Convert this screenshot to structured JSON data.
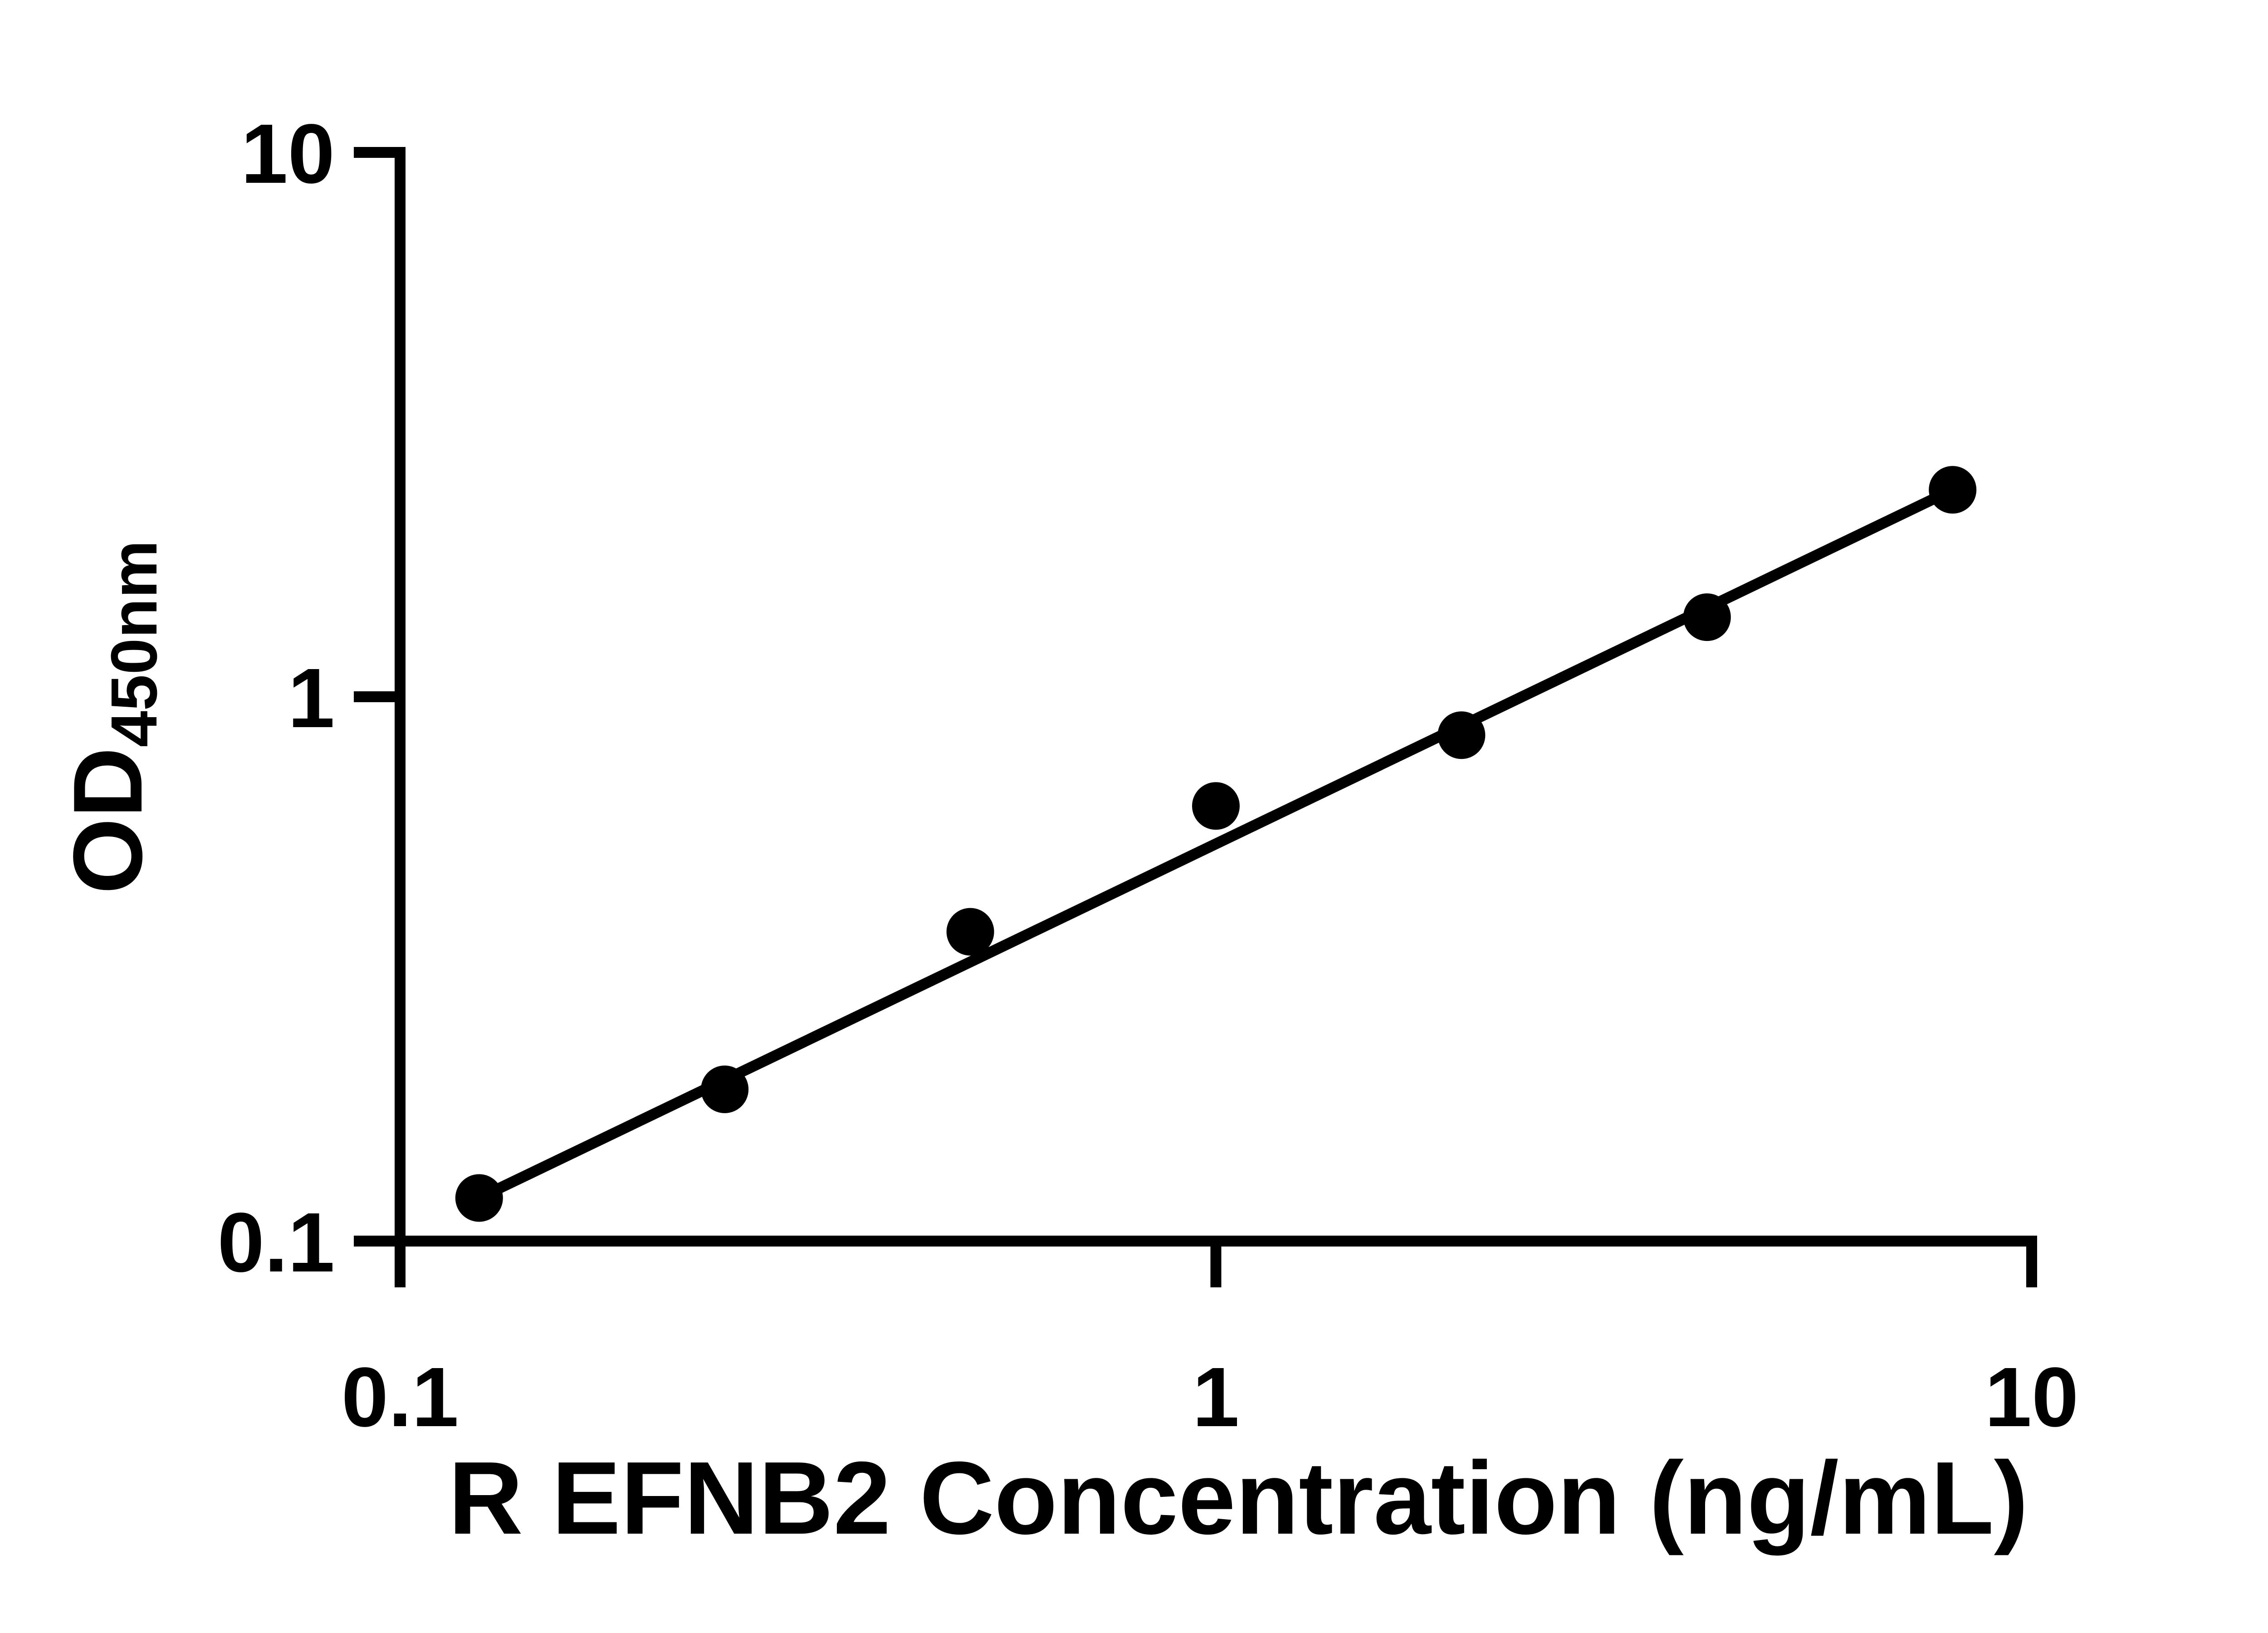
{
  "figure": {
    "background_color": "#ffffff",
    "foreground_color": "#000000"
  },
  "chart_data": {
    "type": "scatter",
    "title": "",
    "xlabel": "R EFNB2 Concentration (ng/mL)",
    "ylabel_main": "OD",
    "ylabel_sub": "450nm",
    "x_scale": "log",
    "y_scale": "log",
    "xlim": [
      0.1,
      10
    ],
    "ylim": [
      0.1,
      10
    ],
    "grid": false,
    "legend": "none",
    "x_ticks": [
      {
        "value": 0.1,
        "label": "0.1"
      },
      {
        "value": 1,
        "label": "1"
      },
      {
        "value": 10,
        "label": "10"
      }
    ],
    "y_ticks": [
      {
        "value": 10,
        "label": "10"
      },
      {
        "value": 1,
        "label": "1"
      },
      {
        "value": 0.1,
        "label": "0.1"
      }
    ],
    "series": [
      {
        "name": "standard-curve-points",
        "marker": "filled-circle",
        "color": "#000000",
        "points": [
          {
            "x": 0.125,
            "y": 0.12
          },
          {
            "x": 0.25,
            "y": 0.19
          },
          {
            "x": 0.5,
            "y": 0.37
          },
          {
            "x": 1,
            "y": 0.63
          },
          {
            "x": 2,
            "y": 0.85
          },
          {
            "x": 4,
            "y": 1.4
          },
          {
            "x": 8,
            "y": 2.4
          }
        ]
      }
    ],
    "trendline": {
      "x1": 0.125,
      "y1": 0.12,
      "x2": 8,
      "y2": 2.4,
      "color": "#000000"
    }
  }
}
